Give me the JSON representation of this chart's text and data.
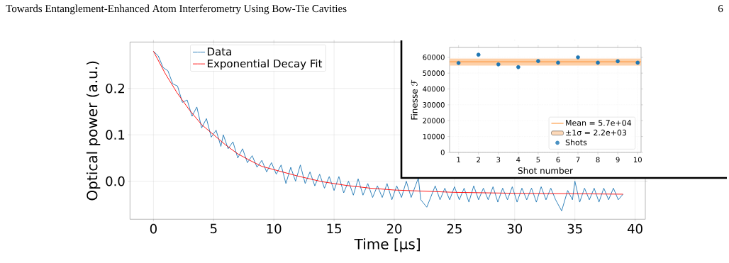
{
  "chart_data": [
    {
      "type": "line",
      "xlabel": "Time [µs]",
      "ylabel": "Optical power (a.u.)",
      "annotations": [
        "Towards Entanglement-Enhanced Atom Interferometry Using Bow-Tie Cavities",
        "6"
      ],
      "xlim": [
        -1.95,
        40.85
      ],
      "ylim": [
        -0.082,
        0.3
      ],
      "xticks": [
        0,
        5,
        10,
        15,
        20,
        25,
        30,
        35,
        40
      ],
      "yticks": [
        {
          "value": 0,
          "label": "0.0"
        },
        0.1,
        0.2
      ],
      "grid": true,
      "legend": "top left",
      "series": [
        {
          "name": "Data",
          "color": "#1f77b4",
          "x": [
            0,
            0.4,
            0.8,
            1.2,
            1.6,
            2.0,
            2.4,
            2.8,
            3.2,
            3.6,
            4.0,
            4.4,
            4.8,
            5.2,
            5.6,
            5.8,
            6.2,
            6.6,
            7.0,
            7.4,
            7.8,
            8.2,
            8.6,
            9.0,
            9.4,
            9.8,
            10.2,
            10.6,
            11.0,
            11.4,
            11.8,
            12.2,
            12.6,
            13.0,
            13.4,
            13.8,
            14.2,
            14.6,
            15.0,
            15.4,
            15.8,
            16.2,
            16.6,
            17.0,
            17.4,
            17.8,
            18.2,
            18.6,
            19.0,
            19.4,
            19.8,
            20.2,
            20.6,
            21.0,
            21.4,
            22.0,
            22.2,
            22.7,
            23.4,
            23.8,
            24.2,
            24.6,
            25.0,
            25.4,
            25.8,
            26.2,
            26.6,
            27.0,
            27.4,
            27.8,
            28.2,
            28.6,
            29.0,
            29.4,
            29.8,
            30.2,
            30.6,
            31.0,
            31.4,
            31.8,
            32.2,
            32.6,
            33.0,
            33.4,
            33.9,
            34.4,
            34.8,
            35.0,
            35.4,
            35.8,
            36.2,
            36.6,
            37.0,
            37.4,
            37.8,
            38.2,
            38.6,
            39.0
          ],
          "values": [
            0.28,
            0.27,
            0.245,
            0.238,
            0.21,
            0.205,
            0.17,
            0.175,
            0.14,
            0.16,
            0.115,
            0.135,
            0.095,
            0.11,
            0.075,
            0.1,
            0.07,
            0.085,
            0.05,
            0.07,
            0.04,
            0.055,
            0.03,
            0.045,
            0.02,
            0.04,
            0.015,
            0.035,
            -0.005,
            0.03,
            0.0,
            0.035,
            -0.005,
            0.02,
            -0.01,
            0.015,
            -0.015,
            0.01,
            -0.02,
            0.01,
            -0.025,
            0.0,
            -0.03,
            0.005,
            -0.03,
            -0.005,
            -0.035,
            -0.01,
            -0.035,
            -0.005,
            -0.04,
            -0.01,
            -0.035,
            0.0,
            -0.035,
            0.007,
            -0.04,
            -0.056,
            -0.01,
            -0.04,
            -0.015,
            -0.04,
            -0.012,
            -0.04,
            -0.015,
            -0.045,
            -0.01,
            -0.04,
            -0.015,
            -0.04,
            -0.012,
            -0.045,
            -0.015,
            -0.04,
            -0.012,
            -0.045,
            -0.015,
            -0.04,
            -0.015,
            -0.045,
            -0.012,
            -0.04,
            -0.015,
            -0.04,
            -0.064,
            -0.02,
            -0.04,
            0.0,
            -0.045,
            -0.015,
            -0.04,
            -0.015,
            -0.045,
            -0.015,
            -0.04,
            -0.015,
            -0.04,
            -0.028
          ]
        },
        {
          "name": "Exponential Decay Fit",
          "color": "#ff0000",
          "x": [
            0,
            1,
            2,
            3,
            4,
            5,
            6,
            7,
            8,
            9,
            10,
            12,
            14,
            16,
            18,
            20,
            25,
            30,
            35,
            39
          ],
          "values": [
            0.28,
            0.231,
            0.189,
            0.153,
            0.122,
            0.1,
            0.078,
            0.059,
            0.045,
            0.032,
            0.025,
            0.011,
            -0.001,
            -0.009,
            -0.015,
            -0.019,
            -0.024,
            -0.026,
            -0.027,
            -0.028
          ]
        }
      ]
    },
    {
      "type": "scatter",
      "xlabel": "Shot number",
      "ylabel": "Finesse ℱ",
      "x": [
        1,
        2,
        3,
        4,
        5,
        6,
        7,
        8,
        9,
        10
      ],
      "xlim": [
        0.55,
        10.17
      ],
      "ylim": [
        0,
        66300
      ],
      "xticks": [
        1,
        2,
        3,
        4,
        5,
        6,
        7,
        8,
        9,
        10
      ],
      "yticks": [
        0,
        10000,
        20000,
        30000,
        40000,
        50000,
        60000
      ],
      "grid": true,
      "legend": "bottom right",
      "bands": [
        {
          "axis": "y",
          "from": 54800,
          "to": 59200,
          "label": "±1σ = 2.2e+03",
          "color": "#fdd0a8"
        }
      ],
      "series": [
        {
          "name": "Mean = 5.7e+04",
          "type": "line",
          "color": "#ff7f0e",
          "x": [
            0.55,
            10.17
          ],
          "values": [
            57200,
            57200
          ],
          "marker": "none"
        },
        {
          "name": "Shots",
          "color": "#1f77b4",
          "marker": "circle",
          "values": [
            56400,
            61600,
            55500,
            53800,
            57600,
            56600,
            60000,
            56600,
            57500,
            56600
          ]
        }
      ]
    }
  ]
}
